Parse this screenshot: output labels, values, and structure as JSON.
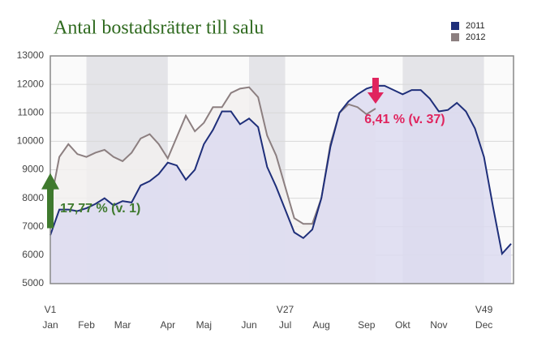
{
  "chart_data": {
    "type": "area",
    "title": "Antal bostadsrätter till salu",
    "x": [
      1,
      2,
      3,
      4,
      5,
      6,
      7,
      8,
      9,
      10,
      11,
      12,
      13,
      14,
      15,
      16,
      17,
      18,
      19,
      20,
      21,
      22,
      23,
      24,
      25,
      26,
      27,
      28,
      29,
      30,
      31,
      32,
      33,
      34,
      35,
      36,
      37,
      38,
      39,
      40,
      41,
      42,
      43,
      44,
      45,
      46,
      47,
      48,
      49,
      50,
      51,
      52
    ],
    "xlim": [
      1,
      52
    ],
    "xticks": [
      {
        "value": 1,
        "label": "Jan"
      },
      {
        "value": 5,
        "label": "Feb"
      },
      {
        "value": 9,
        "label": "Mar"
      },
      {
        "value": 14,
        "label": "Apr"
      },
      {
        "value": 18,
        "label": "Maj"
      },
      {
        "value": 23,
        "label": "Jun"
      },
      {
        "value": 27,
        "label": "Jul"
      },
      {
        "value": 31,
        "label": "Aug"
      },
      {
        "value": 36,
        "label": "Sep"
      },
      {
        "value": 40,
        "label": "Okt"
      },
      {
        "value": 44,
        "label": "Nov"
      },
      {
        "value": 49,
        "label": "Dec"
      }
    ],
    "week_ticks": [
      {
        "value": 1,
        "label": "V1"
      },
      {
        "value": 27,
        "label": "V27"
      },
      {
        "value": 49,
        "label": "V49"
      }
    ],
    "ylim": [
      5000,
      13000
    ],
    "yticks": [
      5000,
      6000,
      7000,
      8000,
      9000,
      10000,
      11000,
      12000,
      13000
    ],
    "grid": true,
    "legend": "top-right",
    "series": [
      {
        "name": "2011",
        "color": "#1f2f7a",
        "fill": "#dcdaf0",
        "values": [
          6700,
          7600,
          7600,
          7550,
          7650,
          7800,
          8000,
          7750,
          7900,
          7850,
          8450,
          8600,
          8850,
          9250,
          9150,
          8650,
          9000,
          9900,
          10400,
          11050,
          11050,
          10600,
          10800,
          10500,
          9100,
          8400,
          7600,
          6800,
          6600,
          6900,
          8000,
          9800,
          11000,
          11400,
          11650,
          11850,
          11950,
          11950,
          11800,
          11650,
          11800,
          11800,
          11500,
          11050,
          11100,
          11350,
          11050,
          10450,
          9450,
          7700,
          6050,
          6400
        ]
      },
      {
        "name": "2012",
        "color": "#8c7f80",
        "fill": "#f2f0ee",
        "values": [
          7800,
          9450,
          9900,
          9550,
          9450,
          9600,
          9700,
          9450,
          9300,
          9600,
          10100,
          10250,
          9900,
          9400,
          10150,
          10900,
          10350,
          10650,
          11200,
          11200,
          11700,
          11850,
          11900,
          11550,
          10200,
          9500,
          8400,
          7300,
          7100,
          7100,
          8000,
          9900,
          11000,
          11300,
          11200,
          10950,
          11150,
          null,
          null,
          null,
          null,
          null,
          null,
          null,
          null,
          null,
          null,
          null,
          null,
          null,
          null,
          null
        ]
      }
    ],
    "annotations": [
      {
        "text": "17,77 % (v. 1)",
        "x": 1,
        "color": "#3f7a2e",
        "direction": "up"
      },
      {
        "text": "6,41 % (v. 37)",
        "x": 37,
        "color": "#e0245e",
        "direction": "down"
      }
    ]
  }
}
